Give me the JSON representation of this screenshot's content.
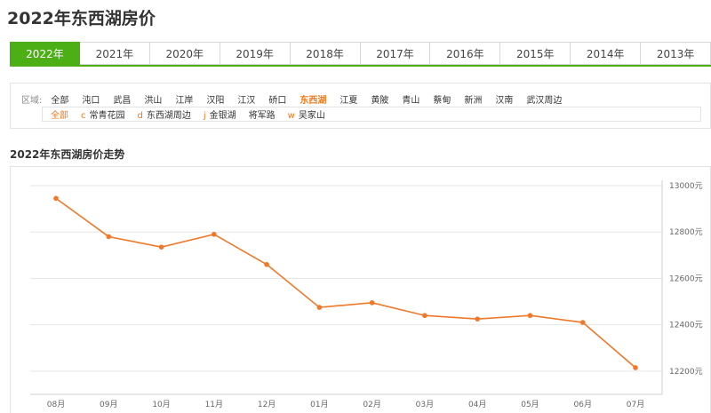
{
  "page": {
    "title": "2022年东西湖房价"
  },
  "year_tabs": [
    {
      "label": "2022年",
      "active": true
    },
    {
      "label": "2021年",
      "active": false
    },
    {
      "label": "2020年",
      "active": false
    },
    {
      "label": "2019年",
      "active": false
    },
    {
      "label": "2018年",
      "active": false
    },
    {
      "label": "2017年",
      "active": false
    },
    {
      "label": "2016年",
      "active": false
    },
    {
      "label": "2015年",
      "active": false
    },
    {
      "label": "2014年",
      "active": false
    },
    {
      "label": "2013年",
      "active": false
    }
  ],
  "filter": {
    "region_label": "区域:",
    "districts": [
      {
        "label": "全部",
        "active": false
      },
      {
        "label": "沌口",
        "active": false
      },
      {
        "label": "武昌",
        "active": false
      },
      {
        "label": "洪山",
        "active": false
      },
      {
        "label": "江岸",
        "active": false
      },
      {
        "label": "汉阳",
        "active": false
      },
      {
        "label": "江汉",
        "active": false
      },
      {
        "label": "硚口",
        "active": false
      },
      {
        "label": "东西湖",
        "active": true
      },
      {
        "label": "江夏",
        "active": false
      },
      {
        "label": "黄陂",
        "active": false
      },
      {
        "label": "青山",
        "active": false
      },
      {
        "label": "蔡甸",
        "active": false
      },
      {
        "label": "新洲",
        "active": false
      },
      {
        "label": "汉南",
        "active": false
      },
      {
        "label": "武汉周边",
        "active": false
      }
    ],
    "sub_areas": [
      {
        "letter": "",
        "label": "全部",
        "active": true
      },
      {
        "letter": "c",
        "label": "常青花园",
        "active": false
      },
      {
        "letter": "d",
        "label": "东西湖周边",
        "active": false
      },
      {
        "letter": "j",
        "label": "金银湖",
        "active": false
      },
      {
        "letter": "",
        "label": "将军路",
        "active": false
      },
      {
        "letter": "w",
        "label": "吴家山",
        "active": false
      }
    ]
  },
  "chart_title": "2022年东西湖房价走势",
  "chart_data": {
    "type": "line",
    "title": "2022年东西湖房价走势",
    "categories": [
      "08月",
      "09月",
      "10月",
      "11月",
      "12月",
      "01月",
      "02月",
      "03月",
      "04月",
      "05月",
      "06月",
      "07月"
    ],
    "series": [
      {
        "values": [
          12945,
          12780,
          12735,
          12790,
          12660,
          12475,
          12495,
          12440,
          12425,
          12440,
          12410,
          12215
        ]
      }
    ],
    "ylim": [
      12100,
      13000
    ],
    "yticks": [
      12200,
      12400,
      12600,
      12800,
      13000
    ],
    "ytick_labels": [
      "12200元",
      "12400元",
      "12600元",
      "12800元",
      "13000元"
    ],
    "grid": true,
    "axis_position": "right",
    "colors": {
      "line": "#f07828",
      "grid": "#e6e6e6",
      "axis_text": "#666666"
    }
  },
  "colors": {
    "accent_green": "#4caf16",
    "accent_orange": "#f07818"
  }
}
